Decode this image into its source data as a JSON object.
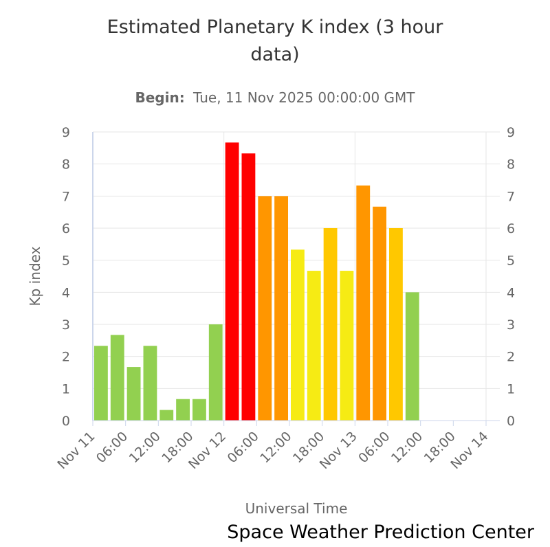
{
  "chart_data": {
    "type": "bar",
    "title_lines": [
      "Estimated Planetary K index (3 hour",
      "data)"
    ],
    "subtitle_label": "Begin:",
    "subtitle_value": "Tue, 11 Nov 2025 00:00:00 GMT",
    "xlabel": "Universal Time",
    "ylabel": "Kp index",
    "ylim": [
      0,
      9
    ],
    "yticks": [
      "0",
      "1",
      "2",
      "3",
      "4",
      "5",
      "6",
      "7",
      "8",
      "9"
    ],
    "xticks": [
      "Nov 11",
      "06:00",
      "12:00",
      "18:00",
      "Nov 12",
      "06:00",
      "12:00",
      "18:00",
      "Nov 13",
      "06:00",
      "12:00",
      "18:00",
      "Nov 14"
    ],
    "x_range_hours": [
      0,
      72
    ],
    "bar_interval_hours": 3,
    "values": [
      2.33,
      2.67,
      1.67,
      2.33,
      0.33,
      0.67,
      0.67,
      3.0,
      8.67,
      8.33,
      7.0,
      7.0,
      5.33,
      4.67,
      6.0,
      4.67,
      7.33,
      6.67,
      6.0,
      4.0
    ],
    "color_scale": {
      "green": "#92D050",
      "yellow": "#F6EB14",
      "gold": "#FFC800",
      "orange": "#FF9600",
      "red": "#FF0000"
    },
    "credits": "Space Weather Prediction Center",
    "grid": true
  }
}
